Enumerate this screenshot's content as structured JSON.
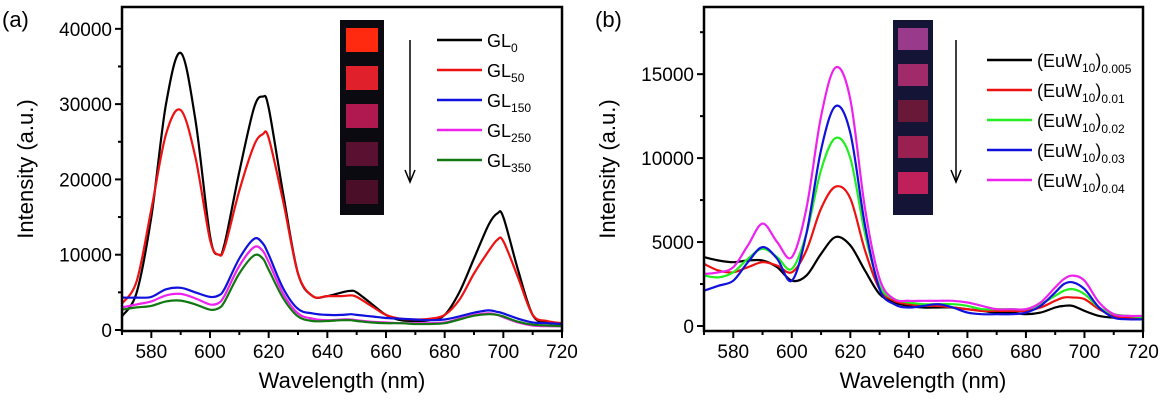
{
  "chart_data": [
    {
      "type": "line",
      "panel_label": "(a)",
      "title": "",
      "xlabel": "Wavelength (nm)",
      "ylabel": "Intensity (a.u.)",
      "xlim": [
        570,
        720
      ],
      "ylim": [
        0,
        42900
      ],
      "xticks": [
        580,
        600,
        620,
        640,
        660,
        680,
        700,
        720
      ],
      "yticks": [
        0,
        10000,
        20000,
        30000,
        40000
      ],
      "ytick_labels": [
        "0",
        "10000",
        "20000",
        "30000",
        "40000"
      ],
      "grid": false,
      "legend_position": "top-right",
      "inset": {
        "description": "photos of samples under UV, top to bottom",
        "swatches": [
          "#ff2a10",
          "#e0202a",
          "#b01850",
          "#5a1030",
          "#4a0e28"
        ],
        "background": "#0a0a10",
        "arrow": "down"
      },
      "legend": [
        {
          "base": "GL",
          "sub": "0"
        },
        {
          "base": "GL",
          "sub": "50"
        },
        {
          "base": "GL",
          "sub": "150"
        },
        {
          "base": "GL",
          "sub": "250"
        },
        {
          "base": "GL",
          "sub": "350"
        }
      ],
      "x": [
        570,
        575,
        580,
        585,
        590,
        595,
        600,
        603,
        605,
        610,
        615,
        618,
        620,
        625,
        630,
        635,
        640,
        645,
        648,
        650,
        655,
        660,
        665,
        670,
        675,
        680,
        685,
        690,
        695,
        698,
        700,
        705,
        710,
        715,
        720
      ],
      "series": [
        {
          "name": "GL0",
          "color": "#000000",
          "values": [
            1800,
            5000,
            15000,
            30000,
            36800,
            28000,
            12500,
            10000,
            11500,
            21000,
            29500,
            31000,
            29500,
            18000,
            7500,
            4500,
            4500,
            5000,
            5200,
            5000,
            3500,
            2000,
            1300,
            1200,
            1300,
            2000,
            5000,
            9500,
            14000,
            15500,
            15000,
            8000,
            2000,
            1000,
            800
          ]
        },
        {
          "name": "GL50",
          "color": "#ee1111",
          "values": [
            3500,
            6500,
            16000,
            26000,
            29200,
            23000,
            12000,
            10000,
            11000,
            18500,
            24500,
            26000,
            25500,
            17000,
            7500,
            4500,
            4500,
            4500,
            4600,
            4400,
            3200,
            2000,
            1500,
            1400,
            1500,
            2000,
            4000,
            7500,
            10500,
            12000,
            11800,
            7000,
            2000,
            1200,
            900
          ]
        },
        {
          "name": "GL150",
          "color": "#1111dd",
          "values": [
            4300,
            4300,
            4400,
            5400,
            5600,
            5000,
            4400,
            4600,
            5500,
            9500,
            12100,
            11500,
            10000,
            5500,
            2800,
            2200,
            2000,
            2000,
            2100,
            2000,
            1800,
            1600,
            1500,
            1400,
            1300,
            1400,
            1800,
            2300,
            2600,
            2400,
            2200,
            1500,
            1000,
            900,
            800
          ]
        },
        {
          "name": "GL250",
          "color": "#ee22ee",
          "values": [
            3000,
            3400,
            3800,
            4600,
            4800,
            4200,
            3400,
            3600,
            4600,
            8500,
            11000,
            10500,
            9000,
            4800,
            2200,
            1500,
            1300,
            1400,
            1400,
            1300,
            1100,
            1000,
            900,
            900,
            900,
            1000,
            1500,
            2000,
            2200,
            2000,
            1700,
            1000,
            600,
            500,
            500
          ]
        },
        {
          "name": "GL350",
          "color": "#117711",
          "values": [
            2700,
            3000,
            3200,
            3800,
            3900,
            3400,
            2700,
            2900,
            3800,
            7500,
            9900,
            9500,
            8000,
            4200,
            1800,
            1200,
            1200,
            1300,
            1300,
            1200,
            1000,
            900,
            900,
            800,
            800,
            900,
            1400,
            1900,
            2100,
            2000,
            1800,
            1100,
            700,
            600,
            500
          ]
        }
      ]
    },
    {
      "type": "line",
      "panel_label": "(b)",
      "title": "",
      "xlabel": "Wavelength (nm)",
      "ylabel": "Intensity (a.u.)",
      "xlim": [
        570,
        720
      ],
      "ylim": [
        0,
        19000
      ],
      "xticks": [
        580,
        600,
        620,
        640,
        660,
        680,
        700,
        720
      ],
      "yticks": [
        0,
        5000,
        10000,
        15000
      ],
      "ytick_labels": [
        "0",
        "5000",
        "10000",
        "15000"
      ],
      "grid": false,
      "legend_position": "top-right",
      "inset": {
        "description": "photos of samples under UV, top to bottom",
        "swatches": [
          "#9a3a8a",
          "#a02a6a",
          "#6a1838",
          "#9a2050",
          "#c0205a"
        ],
        "background": "#141436",
        "arrow": "down"
      },
      "legend": [
        {
          "base": "(EuW",
          "sub1": "10",
          "close": ")",
          "sub2": "0.005"
        },
        {
          "base": "(EuW",
          "sub1": "10",
          "close": ")",
          "sub2": "0.01"
        },
        {
          "base": "(EuW",
          "sub1": "10",
          "close": ")",
          "sub2": "0.02"
        },
        {
          "base": "(EuW",
          "sub1": "10",
          "close": ")",
          "sub2": "0.03"
        },
        {
          "base": "(EuW",
          "sub1": "10",
          "close": ")",
          "sub2": "0.04"
        }
      ],
      "x": [
        570,
        575,
        580,
        585,
        590,
        595,
        600,
        605,
        610,
        615,
        620,
        625,
        630,
        635,
        640,
        645,
        650,
        655,
        660,
        665,
        670,
        675,
        680,
        685,
        690,
        693,
        696,
        700,
        705,
        710,
        715,
        720
      ],
      "series": [
        {
          "name": "(EuW10)0.005",
          "color": "#000000",
          "values": [
            4100,
            3900,
            3800,
            3900,
            3900,
            3500,
            2700,
            3000,
            4300,
            5300,
            4800,
            3300,
            1900,
            1400,
            1200,
            1100,
            1100,
            1100,
            1000,
            900,
            800,
            800,
            700,
            800,
            1100,
            1200,
            1200,
            900,
            600,
            500,
            500,
            500
          ]
        },
        {
          "name": "(EuW10)0.01",
          "color": "#ee1111",
          "values": [
            3700,
            3300,
            3200,
            3500,
            3800,
            3600,
            3200,
            4500,
            7000,
            8300,
            7600,
            4500,
            2200,
            1500,
            1300,
            1200,
            1200,
            1100,
            1000,
            900,
            900,
            900,
            900,
            1100,
            1500,
            1700,
            1700,
            1600,
            1000,
            600,
            500,
            500
          ]
        },
        {
          "name": "(EuW10)0.02",
          "color": "#22ee22",
          "values": [
            3000,
            2900,
            3200,
            4000,
            4600,
            4100,
            3400,
            5500,
            9300,
            11200,
            10000,
            5500,
            2400,
            1600,
            1400,
            1300,
            1300,
            1300,
            1200,
            1000,
            1000,
            1000,
            1000,
            1300,
            1800,
            2100,
            2200,
            1900,
            1100,
            700,
            600,
            500
          ]
        },
        {
          "name": "(EuW10)0.03",
          "color": "#1111dd",
          "values": [
            2100,
            2400,
            2700,
            3800,
            4700,
            4000,
            2700,
            5500,
            10500,
            13100,
            11500,
            6000,
            2200,
            1300,
            1100,
            1200,
            1300,
            1100,
            800,
            700,
            700,
            700,
            800,
            1200,
            2000,
            2500,
            2600,
            2200,
            1100,
            500,
            400,
            400
          ]
        },
        {
          "name": "(EuW10)0.04",
          "color": "#ee22ee",
          "values": [
            3100,
            3200,
            3500,
            4800,
            6100,
            5000,
            4100,
            7000,
            12500,
            15400,
            13500,
            7000,
            2800,
            1600,
            1500,
            1500,
            1500,
            1500,
            1400,
            1200,
            1000,
            1000,
            1000,
            1400,
            2300,
            2800,
            3000,
            2700,
            1400,
            700,
            600,
            600
          ]
        }
      ]
    }
  ]
}
